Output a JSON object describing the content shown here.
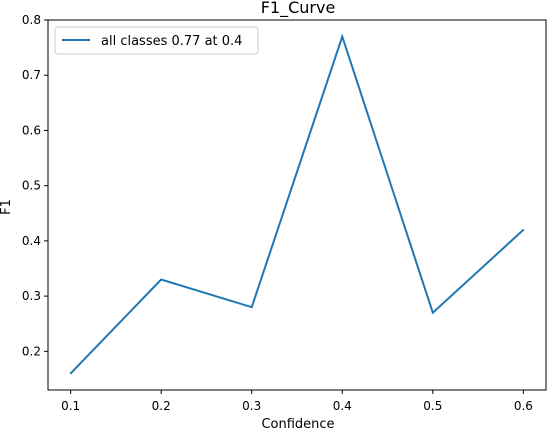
{
  "chart_data": {
    "type": "line",
    "title": "F1_Curve",
    "xlabel": "Confidence",
    "ylabel": "F1",
    "x": [
      0.1,
      0.2,
      0.3,
      0.4,
      0.5,
      0.6
    ],
    "xlim": [
      0.075,
      0.625
    ],
    "ylim": [
      0.13,
      0.8
    ],
    "xticks": [
      0.1,
      0.2,
      0.3,
      0.4,
      0.5,
      0.6
    ],
    "xtick_labels": [
      "0.1",
      "0.2",
      "0.3",
      "0.4",
      "0.5",
      "0.6"
    ],
    "yticks": [
      0.2,
      0.3,
      0.4,
      0.5,
      0.6,
      0.7,
      0.8
    ],
    "ytick_labels": [
      "0.2",
      "0.3",
      "0.4",
      "0.5",
      "0.6",
      "0.7",
      "0.8"
    ],
    "grid": false,
    "legend_position": "top-left",
    "series": [
      {
        "name": "all classes 0.77 at 0.4",
        "color": "#1f77b4",
        "values": [
          0.16,
          0.33,
          0.28,
          0.77,
          0.27,
          0.42
        ]
      }
    ]
  }
}
